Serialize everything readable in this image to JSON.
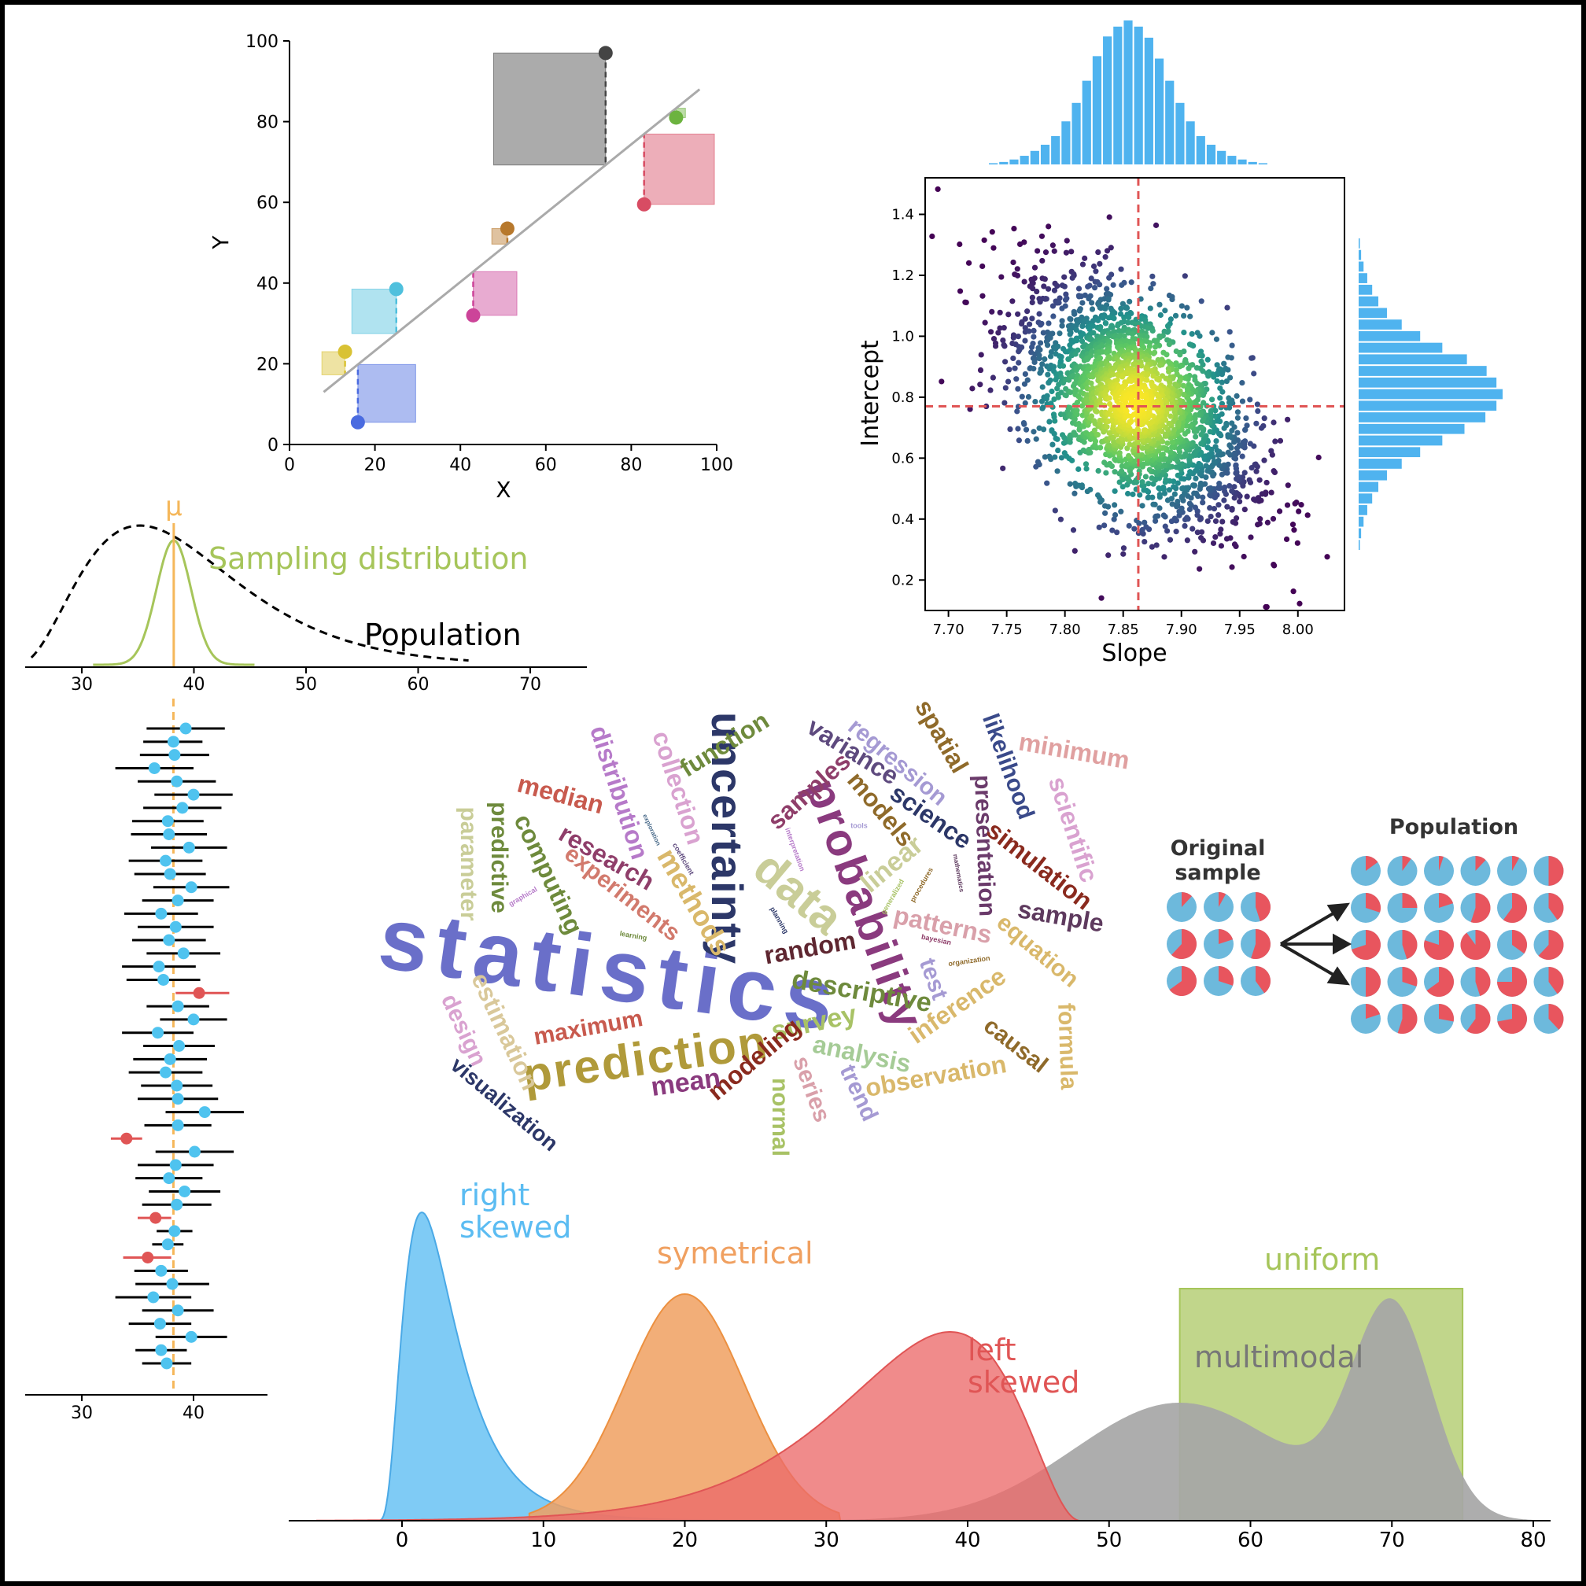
{
  "chart_data": [
    {
      "id": "regression",
      "type": "scatter",
      "xlabel": "X",
      "ylabel": "Y",
      "xlim": [
        0,
        100
      ],
      "ylim": [
        0,
        100
      ],
      "x_ticks": [
        "0",
        "20",
        "40",
        "60",
        "80",
        "100"
      ],
      "y_ticks": [
        "0",
        "20",
        "40",
        "60",
        "80",
        "100"
      ],
      "fit_line": {
        "x": [
          8,
          96
        ],
        "y": [
          13,
          88
        ]
      },
      "points": [
        {
          "x": 16,
          "y": 5.5,
          "color": "#4a6be0"
        },
        {
          "x": 13,
          "y": 23,
          "color": "#d9c234"
        },
        {
          "x": 25,
          "y": 38.5,
          "color": "#4fc0dd"
        },
        {
          "x": 43,
          "y": 32,
          "color": "#cc4499"
        },
        {
          "x": 51,
          "y": 53.5,
          "color": "#b7782c"
        },
        {
          "x": 74,
          "y": 97,
          "color": "#444444"
        },
        {
          "x": 83,
          "y": 59.5,
          "color": "#d84c63"
        },
        {
          "x": 90.5,
          "y": 81,
          "color": "#6cb33f"
        }
      ]
    },
    {
      "id": "joint",
      "type": "scatter",
      "xlabel": "Slope",
      "ylabel": "Intercept",
      "xlim": [
        7.68,
        8.04
      ],
      "ylim": [
        0.1,
        1.52
      ],
      "x_ticks": [
        "7.70",
        "7.75",
        "7.80",
        "7.85",
        "7.90",
        "7.95",
        "8.00"
      ],
      "y_ticks": [
        "0.2",
        "0.4",
        "0.6",
        "0.8",
        "1.0",
        "1.2",
        "1.4"
      ],
      "ref_x": 7.863,
      "ref_y": 0.77,
      "center": [
        7.86,
        0.78
      ],
      "sd": [
        0.05,
        0.2
      ],
      "correlation": -0.5,
      "marginal_x_counts": [
        1,
        2,
        4,
        7,
        11,
        16,
        23,
        35,
        50,
        68,
        88,
        104,
        112,
        117,
        112,
        103,
        86,
        68,
        50,
        35,
        23,
        16,
        11,
        7,
        4,
        2,
        1
      ],
      "marginal_y_counts": [
        1,
        2,
        4,
        7,
        11,
        16,
        23,
        35,
        50,
        68,
        88,
        104,
        112,
        117,
        112,
        103,
        86,
        68,
        50,
        35,
        23,
        16,
        11,
        7,
        4,
        2,
        1
      ]
    },
    {
      "id": "sampling",
      "type": "line",
      "xlim": [
        24,
        75
      ],
      "x_ticks": [
        "30",
        "40",
        "50",
        "60",
        "70"
      ],
      "mu_label": "μ",
      "mu": 38.2,
      "sampling_label": "Sampling distribution",
      "population_label": "Population"
    },
    {
      "id": "intervals",
      "type": "scatter",
      "xlim": [
        25,
        46.5
      ],
      "x_ticks": [
        "30",
        "40"
      ],
      "true_value": 38.2,
      "intervals": [
        {
          "m": 39.3,
          "lo": 35.8,
          "hi": 42.8,
          "miss": false
        },
        {
          "m": 38.2,
          "lo": 35.5,
          "hi": 40.8,
          "miss": false
        },
        {
          "m": 38.3,
          "lo": 35.2,
          "hi": 41.4,
          "miss": false
        },
        {
          "m": 36.5,
          "lo": 33.0,
          "hi": 40.0,
          "miss": false
        },
        {
          "m": 38.5,
          "lo": 35.0,
          "hi": 42.0,
          "miss": false
        },
        {
          "m": 40.0,
          "lo": 36.5,
          "hi": 43.5,
          "miss": false
        },
        {
          "m": 39.0,
          "lo": 35.5,
          "hi": 42.5,
          "miss": false
        },
        {
          "m": 37.7,
          "lo": 34.5,
          "hi": 40.9,
          "miss": false
        },
        {
          "m": 37.8,
          "lo": 34.4,
          "hi": 41.2,
          "miss": false
        },
        {
          "m": 39.6,
          "lo": 36.2,
          "hi": 43.0,
          "miss": false
        },
        {
          "m": 37.5,
          "lo": 34.2,
          "hi": 40.8,
          "miss": false
        },
        {
          "m": 37.9,
          "lo": 34.7,
          "hi": 41.1,
          "miss": false
        },
        {
          "m": 39.8,
          "lo": 36.4,
          "hi": 43.2,
          "miss": false
        },
        {
          "m": 38.6,
          "lo": 35.4,
          "hi": 41.8,
          "miss": false
        },
        {
          "m": 37.1,
          "lo": 33.8,
          "hi": 40.4,
          "miss": false
        },
        {
          "m": 38.4,
          "lo": 35.0,
          "hi": 41.8,
          "miss": false
        },
        {
          "m": 37.8,
          "lo": 34.5,
          "hi": 41.1,
          "miss": false
        },
        {
          "m": 39.1,
          "lo": 35.8,
          "hi": 42.4,
          "miss": false
        },
        {
          "m": 36.9,
          "lo": 33.6,
          "hi": 40.2,
          "miss": false
        },
        {
          "m": 37.3,
          "lo": 34.0,
          "hi": 40.6,
          "miss": false
        },
        {
          "m": 40.5,
          "lo": 38.4,
          "hi": 43.2,
          "miss": true
        },
        {
          "m": 38.6,
          "lo": 35.8,
          "hi": 41.4,
          "miss": false
        },
        {
          "m": 40.0,
          "lo": 37.0,
          "hi": 43.0,
          "miss": false
        },
        {
          "m": 36.8,
          "lo": 33.6,
          "hi": 40.0,
          "miss": false
        },
        {
          "m": 38.7,
          "lo": 35.5,
          "hi": 41.9,
          "miss": false
        },
        {
          "m": 37.9,
          "lo": 34.6,
          "hi": 41.2,
          "miss": false
        },
        {
          "m": 37.5,
          "lo": 34.2,
          "hi": 40.8,
          "miss": false
        },
        {
          "m": 38.5,
          "lo": 35.3,
          "hi": 41.7,
          "miss": false
        },
        {
          "m": 38.6,
          "lo": 35.0,
          "hi": 42.2,
          "miss": false
        },
        {
          "m": 41.0,
          "lo": 37.5,
          "hi": 44.5,
          "miss": false
        },
        {
          "m": 38.6,
          "lo": 35.6,
          "hi": 41.6,
          "miss": false
        },
        {
          "m": 34.0,
          "lo": 32.6,
          "hi": 35.4,
          "miss": true
        },
        {
          "m": 40.1,
          "lo": 36.6,
          "hi": 43.6,
          "miss": false
        },
        {
          "m": 38.4,
          "lo": 35.0,
          "hi": 41.8,
          "miss": false
        },
        {
          "m": 37.8,
          "lo": 34.8,
          "hi": 40.8,
          "miss": false
        },
        {
          "m": 39.2,
          "lo": 36.0,
          "hi": 42.4,
          "miss": false
        },
        {
          "m": 38.5,
          "lo": 35.4,
          "hi": 41.6,
          "miss": false
        },
        {
          "m": 36.6,
          "lo": 35.0,
          "hi": 38.0,
          "miss": true
        },
        {
          "m": 38.3,
          "lo": 36.7,
          "hi": 39.9,
          "miss": false
        },
        {
          "m": 37.7,
          "lo": 36.3,
          "hi": 39.1,
          "miss": false
        },
        {
          "m": 35.9,
          "lo": 33.7,
          "hi": 38.0,
          "miss": true
        },
        {
          "m": 37.1,
          "lo": 34.7,
          "hi": 39.5,
          "miss": false
        },
        {
          "m": 38.1,
          "lo": 34.8,
          "hi": 41.4,
          "miss": false
        },
        {
          "m": 36.4,
          "lo": 33.0,
          "hi": 39.8,
          "miss": false
        },
        {
          "m": 38.6,
          "lo": 35.4,
          "hi": 41.8,
          "miss": false
        },
        {
          "m": 37.0,
          "lo": 34.2,
          "hi": 39.8,
          "miss": false
        },
        {
          "m": 39.8,
          "lo": 36.6,
          "hi": 43.0,
          "miss": false
        },
        {
          "m": 37.1,
          "lo": 34.8,
          "hi": 39.4,
          "miss": false
        },
        {
          "m": 37.6,
          "lo": 35.4,
          "hi": 39.8,
          "miss": false
        }
      ]
    },
    {
      "id": "distributions",
      "type": "area",
      "xlim": [
        -8,
        81
      ],
      "x_ticks": [
        "0",
        "10",
        "20",
        "30",
        "40",
        "50",
        "60",
        "70",
        "80"
      ],
      "labels": {
        "right_skewed_1": "right",
        "right_skewed_2": "skewed",
        "symmetrical": "symetrical",
        "left_skewed_1": "left",
        "left_skewed_2": "skewed",
        "multimodal": "multimodal",
        "uniform": "uniform"
      },
      "uniform_range": [
        55,
        75
      ]
    },
    {
      "id": "bootstrap",
      "type": "pie",
      "original_label_1": "Original",
      "original_label_2": "sample",
      "population_label": "Population",
      "original_red_fractions": [
        0.12,
        0.08,
        0.45,
        0.62,
        0.2,
        0.55,
        0.65,
        0.3,
        0.4
      ],
      "population_red_fractions": [
        0.15,
        0.1,
        0.05,
        0.12,
        0.08,
        0.5,
        0.3,
        0.25,
        0.2,
        0.55,
        0.6,
        0.4,
        0.7,
        0.45,
        0.8,
        0.9,
        0.35,
        0.62,
        0.5,
        0.3,
        0.65,
        0.45,
        0.75,
        0.4,
        0.2,
        0.55,
        0.28,
        0.6,
        0.72,
        0.38
      ]
    }
  ],
  "wordcloud": [
    {
      "t": "statistics",
      "x": 770,
      "y": 1240,
      "s": 112,
      "r": 8,
      "c": "#6a6fc9"
    },
    {
      "t": "prediction",
      "x": 820,
      "y": 1350,
      "s": 60,
      "r": -8,
      "c": "#b09a3a"
    },
    {
      "t": "uncertainty",
      "x": 920,
      "y": 1065,
      "s": 56,
      "r": 90,
      "c": "#2c3768"
    },
    {
      "t": "probability",
      "x": 1095,
      "y": 1150,
      "s": 58,
      "r": 70,
      "c": "#8a3a7e"
    },
    {
      "t": "data",
      "x": 1012,
      "y": 1138,
      "s": 60,
      "r": 40,
      "c": "#c9cd98"
    },
    {
      "t": "descriptive",
      "x": 1095,
      "y": 1262,
      "s": 34,
      "r": 10,
      "c": "#6e8a3c"
    },
    {
      "t": "survey",
      "x": 1035,
      "y": 1302,
      "s": 34,
      "r": -12,
      "c": "#a8c265"
    },
    {
      "t": "analysis",
      "x": 1095,
      "y": 1342,
      "s": 32,
      "r": 12,
      "c": "#a5cb96"
    },
    {
      "t": "random",
      "x": 1030,
      "y": 1207,
      "s": 32,
      "r": -10,
      "c": "#5e2630"
    },
    {
      "t": "experiments",
      "x": 790,
      "y": 1137,
      "s": 30,
      "r": 38,
      "c": "#d27a6d"
    },
    {
      "t": "research",
      "x": 770,
      "y": 1092,
      "s": 32,
      "r": 30,
      "c": "#8f3e6a"
    },
    {
      "t": "methods",
      "x": 880,
      "y": 1148,
      "s": 36,
      "r": 60,
      "c": "#d9b86b"
    },
    {
      "t": "median",
      "x": 712,
      "y": 1012,
      "s": 32,
      "r": 15,
      "c": "#c85a4e"
    },
    {
      "t": "computing",
      "x": 695,
      "y": 1112,
      "s": 32,
      "r": 65,
      "c": "#6e8a3c"
    },
    {
      "t": "predictive",
      "x": 633,
      "y": 1090,
      "s": 30,
      "r": 90,
      "c": "#6e8a3c"
    },
    {
      "t": "parameter",
      "x": 594,
      "y": 1098,
      "s": 30,
      "r": 90,
      "c": "#c9cd98"
    },
    {
      "t": "distribution",
      "x": 785,
      "y": 1008,
      "s": 32,
      "r": 72,
      "c": "#b67ac9"
    },
    {
      "t": "collection",
      "x": 860,
      "y": 1002,
      "s": 32,
      "r": 72,
      "c": "#d9a2d0"
    },
    {
      "t": "function",
      "x": 922,
      "y": 948,
      "s": 32,
      "r": -32,
      "c": "#6e8a3c"
    },
    {
      "t": "samples",
      "x": 1030,
      "y": 1007,
      "s": 32,
      "r": -42,
      "c": "#8f3e6a"
    },
    {
      "t": "variance",
      "x": 1083,
      "y": 957,
      "s": 32,
      "r": 32,
      "c": "#5e4a7e"
    },
    {
      "t": "regression",
      "x": 1140,
      "y": 970,
      "s": 30,
      "r": 40,
      "c": "#a59ad3"
    },
    {
      "t": "models",
      "x": 1118,
      "y": 1030,
      "s": 32,
      "r": 50,
      "c": "#8f6a2a"
    },
    {
      "t": "science",
      "x": 1182,
      "y": 1040,
      "s": 32,
      "r": 35,
      "c": "#2c3768"
    },
    {
      "t": "spatial",
      "x": 1195,
      "y": 937,
      "s": 32,
      "r": 60,
      "c": "#8f6a2a"
    },
    {
      "t": "likelihood",
      "x": 1280,
      "y": 975,
      "s": 30,
      "r": 70,
      "c": "#3a4a8a"
    },
    {
      "t": "minimum",
      "x": 1365,
      "y": 957,
      "s": 32,
      "r": 10,
      "c": "#e0a0a0"
    },
    {
      "t": "scientific",
      "x": 1362,
      "y": 1055,
      "s": 32,
      "r": 72,
      "c": "#d9a2d0"
    },
    {
      "t": "presentation",
      "x": 1250,
      "y": 1075,
      "s": 30,
      "r": 88,
      "c": "#6a3a6a"
    },
    {
      "t": "simulation",
      "x": 1320,
      "y": 1102,
      "s": 32,
      "r": 38,
      "c": "#8a2a1e"
    },
    {
      "t": "sample",
      "x": 1348,
      "y": 1167,
      "s": 32,
      "r": 10,
      "c": "#5e3a5e"
    },
    {
      "t": "linear",
      "x": 1135,
      "y": 1100,
      "s": 34,
      "r": -40,
      "c": "#c9cd98"
    },
    {
      "t": "patterns",
      "x": 1198,
      "y": 1178,
      "s": 32,
      "r": 12,
      "c": "#d9a0aa"
    },
    {
      "t": "equation",
      "x": 1318,
      "y": 1210,
      "s": 30,
      "r": 40,
      "c": "#d9b86b"
    },
    {
      "t": "test",
      "x": 1185,
      "y": 1245,
      "s": 30,
      "r": 70,
      "c": "#a59ad3"
    },
    {
      "t": "inference",
      "x": 1218,
      "y": 1280,
      "s": 32,
      "r": -35,
      "c": "#d9b86b"
    },
    {
      "t": "formula",
      "x": 1355,
      "y": 1330,
      "s": 30,
      "r": 88,
      "c": "#d9b86b"
    },
    {
      "t": "causal",
      "x": 1290,
      "y": 1330,
      "s": 30,
      "r": 38,
      "c": "#8f6a2a"
    },
    {
      "t": "observation",
      "x": 1190,
      "y": 1370,
      "s": 32,
      "r": -10,
      "c": "#d9b86b"
    },
    {
      "t": "trend",
      "x": 1090,
      "y": 1390,
      "s": 30,
      "r": 65,
      "c": "#a59ad3"
    },
    {
      "t": "series",
      "x": 1030,
      "y": 1385,
      "s": 30,
      "r": 70,
      "c": "#d9a0aa"
    },
    {
      "t": "normal",
      "x": 990,
      "y": 1420,
      "s": 30,
      "r": 90,
      "c": "#a8c265"
    },
    {
      "t": "modeling",
      "x": 960,
      "y": 1348,
      "s": 32,
      "r": -40,
      "c": "#8a2a1e"
    },
    {
      "t": "mean",
      "x": 872,
      "y": 1378,
      "s": 34,
      "r": -8,
      "c": "#8a3a7e"
    },
    {
      "t": "maximum",
      "x": 748,
      "y": 1308,
      "s": 30,
      "r": -10,
      "c": "#c85a4e"
    },
    {
      "t": "estimation",
      "x": 640,
      "y": 1312,
      "s": 32,
      "r": 65,
      "c": "#d9c89a"
    },
    {
      "t": "design",
      "x": 588,
      "y": 1310,
      "s": 30,
      "r": 65,
      "c": "#d9a2d0"
    },
    {
      "t": "visualization",
      "x": 640,
      "y": 1405,
      "s": 28,
      "r": 40,
      "c": "#2c3768"
    },
    {
      "t": "learning",
      "x": 805,
      "y": 1190,
      "s": 9,
      "r": 10,
      "c": "#6e8a3c"
    },
    {
      "t": "graphical",
      "x": 665,
      "y": 1140,
      "s": 9,
      "r": -30,
      "c": "#b67ac9"
    },
    {
      "t": "coefficient",
      "x": 868,
      "y": 1092,
      "s": 9,
      "r": 60,
      "c": "#5e4a7e"
    },
    {
      "t": "exploration",
      "x": 828,
      "y": 1055,
      "s": 8,
      "r": 65,
      "c": "#4a6b8a"
    },
    {
      "t": "interpretation",
      "x": 1010,
      "y": 1080,
      "s": 9,
      "r": 70,
      "c": "#b67ac9"
    },
    {
      "t": "planning",
      "x": 990,
      "y": 1170,
      "s": 9,
      "r": 60,
      "c": "#2c3768"
    },
    {
      "t": "tools",
      "x": 1092,
      "y": 1050,
      "s": 9,
      "r": 0,
      "c": "#a59ad3"
    },
    {
      "t": "generalized",
      "x": 1135,
      "y": 1140,
      "s": 9,
      "r": -60,
      "c": "#a8c265"
    },
    {
      "t": "procedures",
      "x": 1172,
      "y": 1125,
      "s": 9,
      "r": -60,
      "c": "#8f6a2a"
    },
    {
      "t": "mathematics",
      "x": 1218,
      "y": 1110,
      "s": 8,
      "r": 80,
      "c": "#5e3a5e"
    },
    {
      "t": "bayesian",
      "x": 1190,
      "y": 1195,
      "s": 9,
      "r": 12,
      "c": "#8f3e6a"
    },
    {
      "t": "organization",
      "x": 1232,
      "y": 1222,
      "s": 9,
      "r": -8,
      "c": "#8f6a2a"
    }
  ]
}
